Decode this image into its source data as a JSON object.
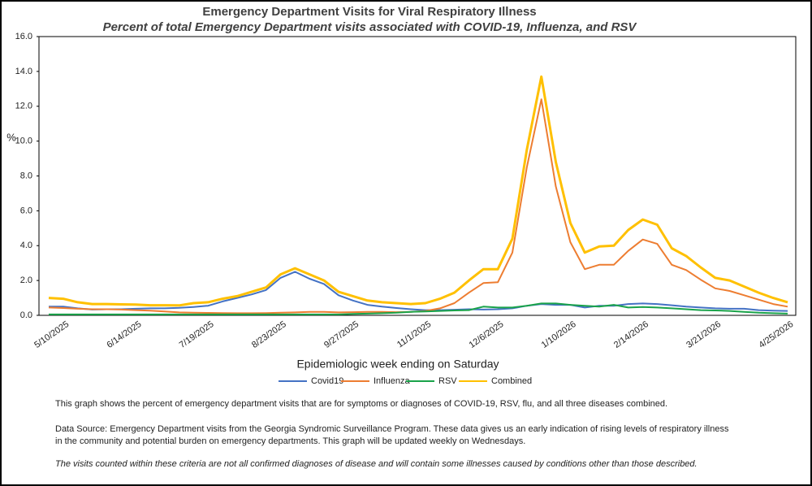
{
  "chart_data": {
    "type": "line",
    "title": "Emergency Department Visits for Viral Respiratory Illness",
    "subtitle": "Percent of total Emergency Department visits associated with COVID-19, Influenza, and RSV",
    "y_label": "%",
    "x_label": "Epidemiologic  week ending on Saturday",
    "categories": [
      null,
      "5/10/2025",
      null,
      null,
      null,
      null,
      "6/14/2025",
      null,
      null,
      null,
      null,
      "7/19/2025",
      null,
      null,
      null,
      null,
      "8/23/2025",
      null,
      null,
      null,
      null,
      "9/27/2025",
      null,
      null,
      null,
      null,
      "11/1/2025",
      null,
      null,
      null,
      null,
      "12/6/2025",
      null,
      null,
      null,
      null,
      "1/10/2026",
      null,
      null,
      null,
      null,
      "2/14/2026",
      null,
      null,
      null,
      null,
      "3/21/2026",
      null,
      null,
      null,
      null,
      "4/25/2026"
    ],
    "ylim": [
      0,
      16
    ],
    "yticks": [
      {
        "value": 0,
        "label": "0.0"
      },
      {
        "value": 2,
        "label": "2.0"
      },
      {
        "value": 4,
        "label": "4.0"
      },
      {
        "value": 6,
        "label": "6.0"
      },
      {
        "value": 8,
        "label": "8.0"
      },
      {
        "value": 10,
        "label": "10.0"
      },
      {
        "value": 12,
        "label": "12.0"
      },
      {
        "value": 14,
        "label": "14.0"
      },
      {
        "value": 16,
        "label": "16.0"
      }
    ],
    "grid": false,
    "legend": "bottom",
    "series": [
      {
        "name": "Covid19",
        "color": "#4472c4",
        "values": [
          0.5,
          0.5,
          0.4,
          0.33,
          0.35,
          0.35,
          0.38,
          0.4,
          0.4,
          0.43,
          0.48,
          0.55,
          0.8,
          1.0,
          1.2,
          1.45,
          2.15,
          2.5,
          2.1,
          1.8,
          1.15,
          0.85,
          0.6,
          0.5,
          0.42,
          0.35,
          0.3,
          0.3,
          0.32,
          0.35,
          0.33,
          0.35,
          0.4,
          0.55,
          0.65,
          0.6,
          0.6,
          0.45,
          0.55,
          0.55,
          0.65,
          0.68,
          0.65,
          0.58,
          0.5,
          0.45,
          0.4,
          0.38,
          0.38,
          0.3,
          0.27,
          0.25
        ]
      },
      {
        "name": "Influenza",
        "color": "#ed7d31",
        "values": [
          0.45,
          0.42,
          0.38,
          0.35,
          0.35,
          0.33,
          0.3,
          0.27,
          0.22,
          0.17,
          0.15,
          0.14,
          0.13,
          0.12,
          0.12,
          0.13,
          0.15,
          0.17,
          0.2,
          0.2,
          0.17,
          0.18,
          0.2,
          0.2,
          0.18,
          0.2,
          0.25,
          0.4,
          0.7,
          1.3,
          1.85,
          1.9,
          3.6,
          8.5,
          12.4,
          7.4,
          4.2,
          2.65,
          2.9,
          2.9,
          3.7,
          4.35,
          4.1,
          2.9,
          2.6,
          2.05,
          1.55,
          1.4,
          1.15,
          0.9,
          0.65,
          0.5
        ]
      },
      {
        "name": "RSV",
        "color": "#1aa34a",
        "values": [
          0.05,
          0.05,
          0.05,
          0.05,
          0.05,
          0.05,
          0.05,
          0.05,
          0.05,
          0.05,
          0.05,
          0.05,
          0.05,
          0.05,
          0.05,
          0.05,
          0.05,
          0.05,
          0.05,
          0.05,
          0.05,
          0.08,
          0.1,
          0.12,
          0.15,
          0.2,
          0.22,
          0.25,
          0.28,
          0.3,
          0.5,
          0.45,
          0.45,
          0.55,
          0.68,
          0.68,
          0.6,
          0.55,
          0.5,
          0.6,
          0.45,
          0.48,
          0.45,
          0.4,
          0.35,
          0.3,
          0.28,
          0.25,
          0.2,
          0.15,
          0.12,
          0.1
        ]
      },
      {
        "name": "Combined",
        "color": "#ffc000",
        "values": [
          1.0,
          0.95,
          0.75,
          0.65,
          0.65,
          0.63,
          0.62,
          0.58,
          0.58,
          0.57,
          0.7,
          0.75,
          0.95,
          1.1,
          1.35,
          1.6,
          2.35,
          2.7,
          2.35,
          2.0,
          1.35,
          1.1,
          0.85,
          0.75,
          0.7,
          0.65,
          0.7,
          0.95,
          1.3,
          2.0,
          2.65,
          2.65,
          4.4,
          9.5,
          13.7,
          8.8,
          5.3,
          3.6,
          3.95,
          4.0,
          4.9,
          5.5,
          5.2,
          3.85,
          3.4,
          2.75,
          2.15,
          2.0,
          1.65,
          1.3,
          1.0,
          0.75
        ]
      }
    ],
    "notes": [
      [
        "This graph shows the percent of emergency department visits that are for symptoms or diagnoses of COVID-19, RSV, flu, and all three diseases combined."
      ],
      [
        "Data Source: Emergency Department visits from the Georgia Syndromic Surveillance Program. These data gives us an early indication of rising levels of respiratory illness",
        "in the community and potential burden on emergency departments. This graph will be updated weekly on Wednesdays."
      ],
      [
        "The visits counted within these criteria are not all confirmed diagnoses of disease and will contain some illnesses caused by conditions other than those described."
      ]
    ]
  }
}
